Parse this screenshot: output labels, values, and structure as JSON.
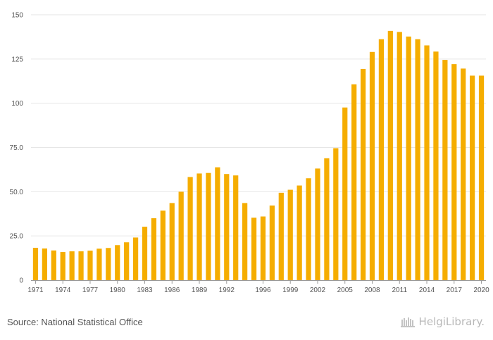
{
  "chart_data": {
    "type": "bar",
    "title": "",
    "xlabel": "",
    "ylabel": "",
    "ylim": [
      0,
      150
    ],
    "yticks": [
      0,
      25.0,
      50.0,
      75.0,
      100,
      125,
      150
    ],
    "ytick_labels": [
      "0",
      "25.0",
      "50.0",
      "75.0",
      "100",
      "125",
      "150"
    ],
    "xtick_labels": [
      "1971",
      "1974",
      "1977",
      "1980",
      "1983",
      "1986",
      "1989",
      "1992",
      "1996",
      "1999",
      "2002",
      "2005",
      "2008",
      "2011",
      "2014",
      "2017",
      "2020"
    ],
    "grid": true,
    "bar_color": "#f5ad00",
    "categories": [
      "1971",
      "1972",
      "1973",
      "1974",
      "1975",
      "1976",
      "1977",
      "1978",
      "1979",
      "1980",
      "1981",
      "1982",
      "1983",
      "1984",
      "1985",
      "1986",
      "1987",
      "1988",
      "1989",
      "1990",
      "1991",
      "1992",
      "1993",
      "1994",
      "1995",
      "1996",
      "1997",
      "1998",
      "1999",
      "2000",
      "2001",
      "2002",
      "2003",
      "2004",
      "2005",
      "2006",
      "2007",
      "2008",
      "2009",
      "2010",
      "2011",
      "2012",
      "2013",
      "2014",
      "2015",
      "2016",
      "2017",
      "2018",
      "2019",
      "2020"
    ],
    "values": [
      18.3,
      17.9,
      16.8,
      15.9,
      16.3,
      16.3,
      16.7,
      17.8,
      18.2,
      19.8,
      21.4,
      24.1,
      30.2,
      35.0,
      39.3,
      43.6,
      50.0,
      58.3,
      60.3,
      60.6,
      63.8,
      60.0,
      59.2,
      43.6,
      35.3,
      36.0,
      42.2,
      49.4,
      51.1,
      53.5,
      57.6,
      63.1,
      68.9,
      74.6,
      97.6,
      110.7,
      119.4,
      129.0,
      136.2,
      140.9,
      140.3,
      137.7,
      136.2,
      132.7,
      129.2,
      124.5,
      122.1,
      119.6,
      115.6,
      115.6
    ]
  },
  "footer": {
    "source": "Source: National Statistical Office",
    "brand": "HelgiLibrary."
  }
}
